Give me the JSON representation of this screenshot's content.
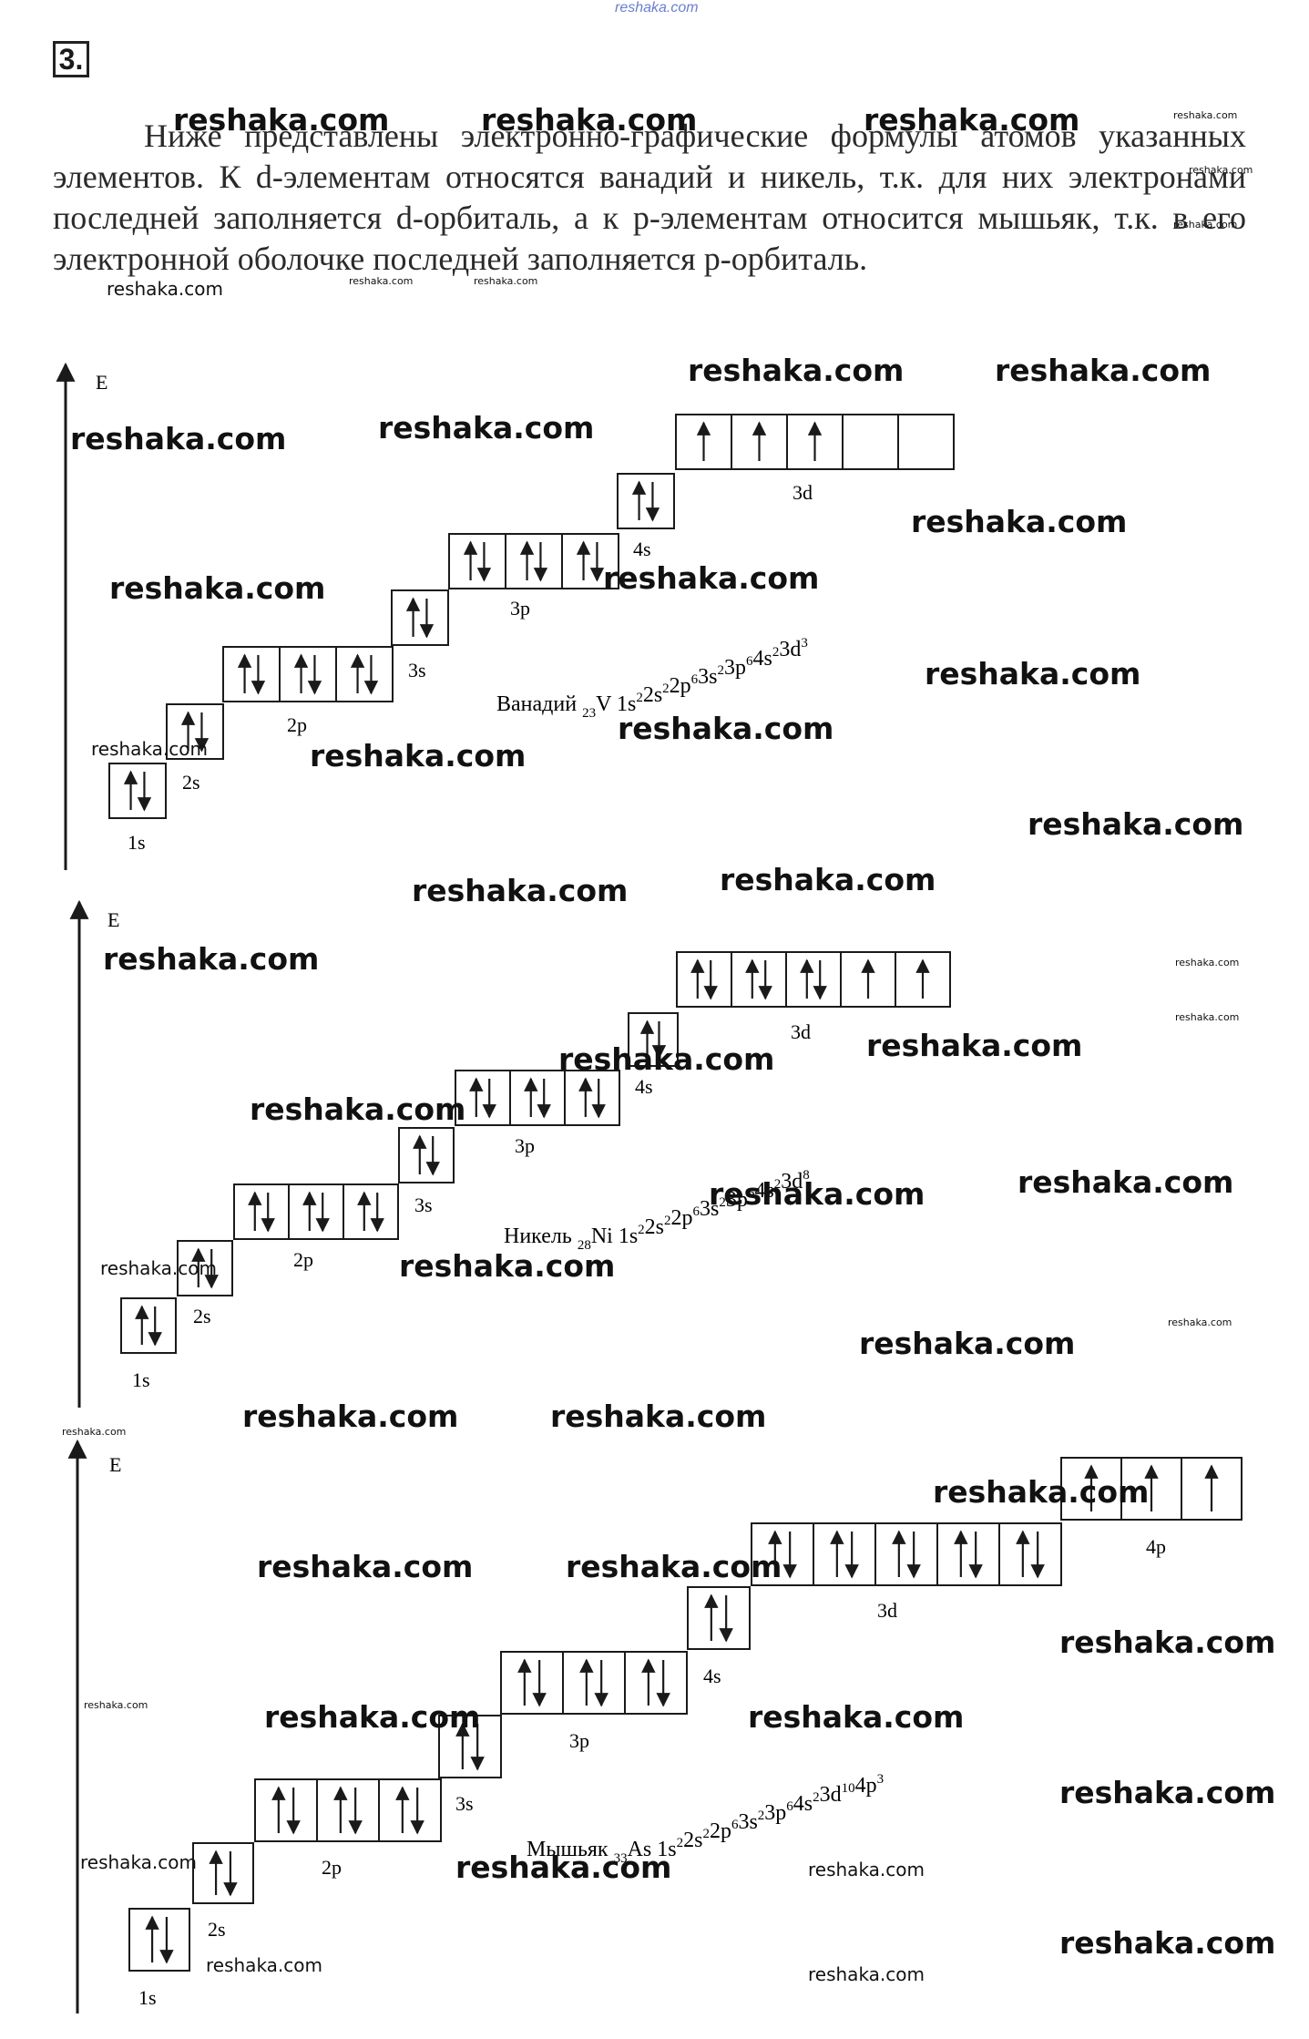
{
  "header": {
    "site": "reshaka.com",
    "task_number": "3."
  },
  "intro_text": "Ниже представлены электронно-графические формулы атомов указанных элементов. К d-элементам относятся ванадий и никель, т.к. для них электронами последней заполняется d-орбиталь, а к p-элементам относится мышьяк, т.к. в его электронной оболочке последней заполняется p-орбиталь.",
  "energy_label": "E",
  "diagrams": [
    {
      "id": "vanadium",
      "formula": {
        "name": "Ванадий",
        "z": "23",
        "symbol": "V",
        "terms": [
          [
            "1s",
            "2"
          ],
          [
            "2s",
            "2"
          ],
          [
            "2p",
            "6"
          ],
          [
            "3s",
            "2"
          ],
          [
            "3p",
            "6"
          ],
          [
            "4s",
            "2"
          ],
          [
            "3d",
            "3"
          ]
        ]
      },
      "sublevels": [
        {
          "label": "1s",
          "cells": [
            "ud"
          ]
        },
        {
          "label": "2s",
          "cells": [
            "ud"
          ]
        },
        {
          "label": "2p",
          "cells": [
            "ud",
            "ud",
            "ud"
          ]
        },
        {
          "label": "3s",
          "cells": [
            "ud"
          ]
        },
        {
          "label": "3p",
          "cells": [
            "ud",
            "ud",
            "ud"
          ]
        },
        {
          "label": "4s",
          "cells": [
            "ud"
          ]
        },
        {
          "label": "3d",
          "cells": [
            "u",
            "u",
            "u",
            "",
            ""
          ]
        }
      ]
    },
    {
      "id": "nickel",
      "formula": {
        "name": "Никель",
        "z": "28",
        "symbol": "Ni",
        "terms": [
          [
            "1s",
            "2"
          ],
          [
            "2s",
            "2"
          ],
          [
            "2p",
            "6"
          ],
          [
            "3s",
            "2"
          ],
          [
            "3p",
            "6"
          ],
          [
            "4s",
            "2"
          ],
          [
            "3d",
            "8"
          ]
        ]
      },
      "sublevels": [
        {
          "label": "1s",
          "cells": [
            "ud"
          ]
        },
        {
          "label": "2s",
          "cells": [
            "ud"
          ]
        },
        {
          "label": "2p",
          "cells": [
            "ud",
            "ud",
            "ud"
          ]
        },
        {
          "label": "3s",
          "cells": [
            "ud"
          ]
        },
        {
          "label": "3p",
          "cells": [
            "ud",
            "ud",
            "ud"
          ]
        },
        {
          "label": "4s",
          "cells": [
            "ud"
          ]
        },
        {
          "label": "3d",
          "cells": [
            "ud",
            "ud",
            "ud",
            "u",
            "u"
          ]
        }
      ]
    },
    {
      "id": "arsenic",
      "formula": {
        "name": "Мышьяк",
        "z": "33",
        "symbol": "As",
        "terms": [
          [
            "1s",
            "2"
          ],
          [
            "2s",
            "2"
          ],
          [
            "2p",
            "6"
          ],
          [
            "3s",
            "2"
          ],
          [
            "3p",
            "6"
          ],
          [
            "4s",
            "2"
          ],
          [
            "3d",
            "10"
          ],
          [
            "4p",
            "3"
          ]
        ]
      },
      "sublevels": [
        {
          "label": "1s",
          "cells": [
            "ud"
          ]
        },
        {
          "label": "2s",
          "cells": [
            "ud"
          ]
        },
        {
          "label": "2p",
          "cells": [
            "ud",
            "ud",
            "ud"
          ]
        },
        {
          "label": "3s",
          "cells": [
            "ud"
          ]
        },
        {
          "label": "3p",
          "cells": [
            "ud",
            "ud",
            "ud"
          ]
        },
        {
          "label": "4s",
          "cells": [
            "ud"
          ]
        },
        {
          "label": "3d",
          "cells": [
            "ud",
            "ud",
            "ud",
            "ud",
            "ud"
          ]
        },
        {
          "label": "4p",
          "cells": [
            "u",
            "u",
            "u"
          ]
        }
      ]
    }
  ],
  "watermark": "reshaka.com"
}
